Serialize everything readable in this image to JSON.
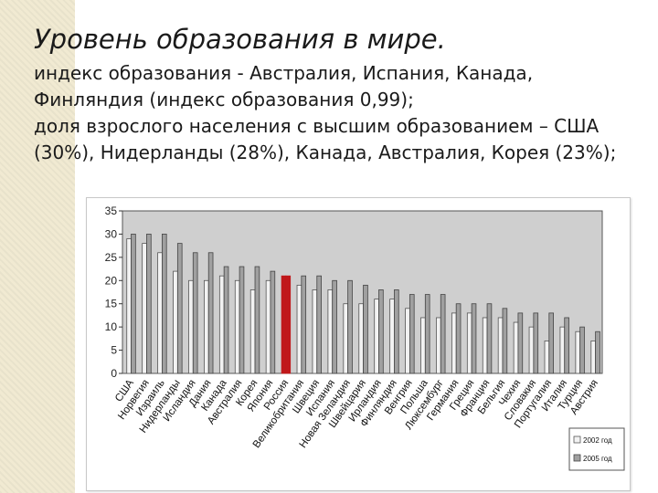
{
  "slide": {
    "title": "Уровень образования в мире.",
    "lines": [
      "индекс образования - Австралия, Испания, Канада,",
      "Финляндия (индекс образования 0,99);",
      "доля взрослого населения с высшим образованием – США",
      "(30%), Нидерланды (28%), Канада, Австралия, Корея (23%);"
    ]
  },
  "colors": {
    "sidebar": "#f1ead2",
    "bar_2002": "#f2f2f2",
    "bar_2005": "#a0a0a0",
    "highlight": "#c0181b",
    "plot_bg": "#cfcfcf"
  },
  "chart_data": {
    "type": "bar",
    "categories": [
      "США",
      "Норвегия",
      "Израиль",
      "Нидерланды",
      "Исландия",
      "Дания",
      "Канада",
      "Австралия",
      "Корея",
      "Япония",
      "Россия",
      "Великобритания",
      "Швеция",
      "Испания",
      "Новая Зеландия",
      "Швейцария",
      "Ирландия",
      "Финляндия",
      "Венгрия",
      "Польша",
      "Люксембург",
      "Германия",
      "Греция",
      "Франция",
      "Бельгия",
      "Чехия",
      "Словакия",
      "Португалия",
      "Италия",
      "Турция",
      "Австрия"
    ],
    "series": [
      {
        "name": "2002 год",
        "values": [
          29,
          28,
          26,
          22,
          20,
          20,
          21,
          20,
          18,
          20,
          21,
          19,
          18,
          18,
          15,
          15,
          16,
          16,
          14,
          12,
          12,
          13,
          13,
          12,
          12,
          11,
          10,
          7,
          10,
          9,
          7
        ]
      },
      {
        "name": "2005 год",
        "values": [
          30,
          30,
          30,
          28,
          26,
          26,
          23,
          23,
          23,
          22,
          21,
          21,
          21,
          20,
          20,
          19,
          18,
          18,
          17,
          17,
          17,
          15,
          15,
          15,
          14,
          13,
          13,
          13,
          12,
          10,
          9
        ]
      }
    ],
    "highlight_category": "Россия",
    "xlabel": "",
    "ylabel": "",
    "ylim": [
      0,
      35
    ],
    "yticks": [
      0,
      5,
      10,
      15,
      20,
      25,
      30,
      35
    ],
    "grid": false,
    "legend_position": "bottom-right"
  }
}
